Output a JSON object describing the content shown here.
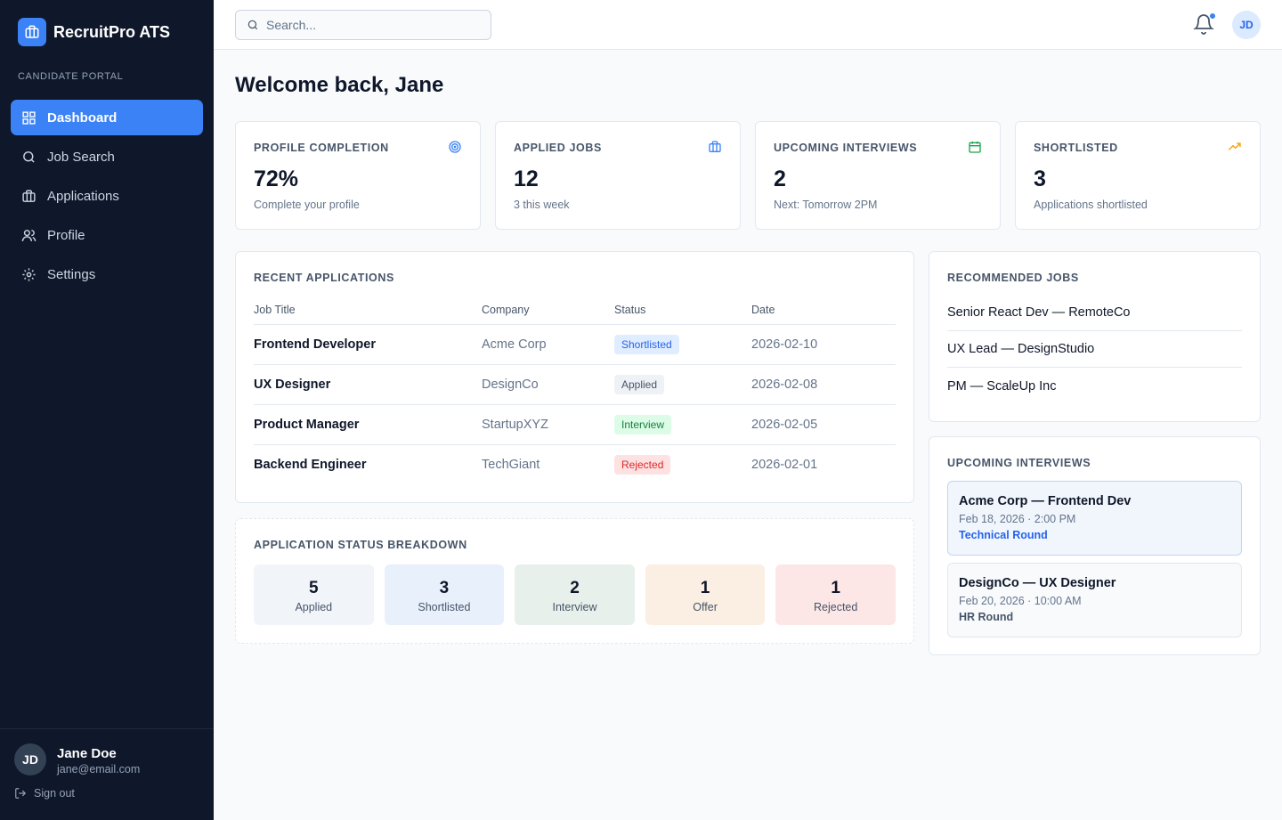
{
  "brand": {
    "name": "RecruitPro ATS"
  },
  "sidebar": {
    "section": "CANDIDATE PORTAL",
    "nav": [
      "Dashboard",
      "Job Search",
      "Applications",
      "Profile",
      "Settings"
    ],
    "user": {
      "initials": "JD",
      "name": "Jane Doe",
      "email": "jane@email.com"
    },
    "sign_out": "Sign out"
  },
  "topbar": {
    "search_placeholder": "Search...",
    "avatar": "JD"
  },
  "header": {
    "title": "Welcome back, Jane"
  },
  "stats": [
    {
      "label": "PROFILE COMPLETION",
      "value": "72%",
      "note": "Complete your profile"
    },
    {
      "label": "APPLIED JOBS",
      "value": "12",
      "note": "3 this week"
    },
    {
      "label": "UPCOMING INTERVIEWS",
      "value": "2",
      "note": "Next: Tomorrow 2PM"
    },
    {
      "label": "SHORTLISTED",
      "value": "3",
      "note": "Applications shortlisted"
    }
  ],
  "recent_applications": {
    "title": "RECENT APPLICATIONS",
    "columns": [
      "Job Title",
      "Company",
      "Status",
      "Date"
    ],
    "rows": [
      [
        "Frontend Developer",
        "Acme Corp",
        "Shortlisted",
        "2026-02-10"
      ],
      [
        "UX Designer",
        "DesignCo",
        "Applied",
        "2026-02-08"
      ],
      [
        "Product Manager",
        "StartupXYZ",
        "Interview",
        "2026-02-05"
      ],
      [
        "Backend Engineer",
        "TechGiant",
        "Rejected",
        "2026-02-01"
      ]
    ]
  },
  "status_breakdown": {
    "title": "APPLICATION STATUS BREAKDOWN",
    "items": [
      {
        "count": "5",
        "label": "Applied"
      },
      {
        "count": "3",
        "label": "Shortlisted"
      },
      {
        "count": "2",
        "label": "Interview"
      },
      {
        "count": "1",
        "label": "Offer"
      },
      {
        "count": "1",
        "label": "Rejected"
      }
    ]
  },
  "recommended_jobs": {
    "title": "RECOMMENDED JOBS",
    "items": [
      "Senior React Dev — RemoteCo",
      "UX Lead — DesignStudio",
      "PM — ScaleUp Inc"
    ]
  },
  "upcoming_interviews": {
    "title": "UPCOMING INTERVIEWS",
    "items": [
      {
        "title": "Acme Corp — Frontend Dev",
        "time": "Feb 18, 2026 · 2:00 PM",
        "round": "Technical Round"
      },
      {
        "title": "DesignCo — UX Designer",
        "time": "Feb 20, 2026 · 10:00 AM",
        "round": "HR Round"
      }
    ]
  }
}
